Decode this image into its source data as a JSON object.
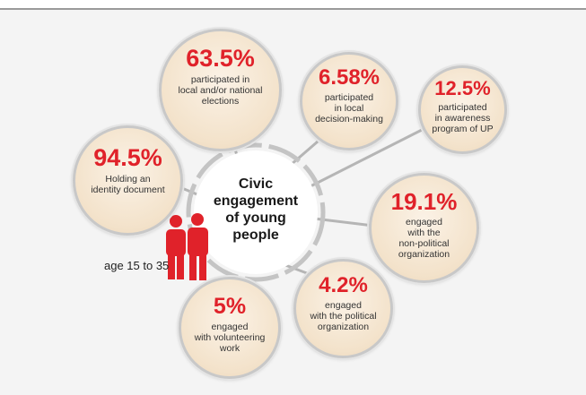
{
  "center": {
    "label": "Civic\nengagement\nof young\npeople"
  },
  "age_label": "age 15 to 35",
  "stats": [
    {
      "id": "elections",
      "value": "63.5%",
      "label": "participated in\nlocal and/or national\nelections"
    },
    {
      "id": "decision",
      "value": "6.58%",
      "label": "participated\nin local\ndecision-making"
    },
    {
      "id": "awareness",
      "value": "12.5%",
      "label": "participated\nin awareness\nprogram of UP"
    },
    {
      "id": "identity",
      "value": "94.5%",
      "label": "Holding an\nidentity document"
    },
    {
      "id": "nonpolitical",
      "value": "19.1%",
      "label": "engaged\nwith the\nnon-political\norganization"
    },
    {
      "id": "political",
      "value": "4.2%",
      "label": "engaged\nwith the political\norganization"
    },
    {
      "id": "volunteering",
      "value": "5%",
      "label": "engaged\nwith volunteering\nwork"
    }
  ],
  "colors": {
    "value_red": "#e0222a",
    "people_red": "#e0222a",
    "bubble_fill": "#f3e2ca",
    "connector_gray": "#b5b5b5"
  },
  "icons": {
    "people": "people-icon"
  }
}
